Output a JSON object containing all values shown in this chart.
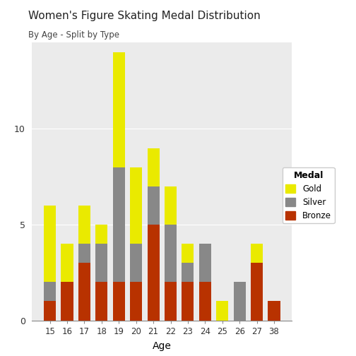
{
  "ages": [
    15,
    16,
    17,
    18,
    19,
    20,
    21,
    22,
    23,
    24,
    25,
    26,
    27,
    38
  ],
  "bronze": [
    1,
    2,
    3,
    2,
    2,
    2,
    5,
    2,
    2,
    2,
    0,
    0,
    3,
    1
  ],
  "silver": [
    1,
    0,
    1,
    2,
    6,
    2,
    2,
    3,
    1,
    2,
    0,
    2,
    0,
    0
  ],
  "gold": [
    4,
    2,
    2,
    1,
    6,
    4,
    2,
    2,
    1,
    0,
    1,
    0,
    1,
    0
  ],
  "gold_color": "#EAEA00",
  "silver_color": "#888888",
  "bronze_color": "#B83200",
  "title": "Women's Figure Skating Medal Distribution",
  "subtitle": "By Age - Split by Type",
  "xlabel": "Age",
  "bg_color": "#FFFFFF",
  "panel_bg": "#EBEBEB",
  "grid_color": "#FFFFFF",
  "legend_title": "Medal",
  "yticks": [
    0,
    5,
    10
  ],
  "ylim_max": 14.5
}
